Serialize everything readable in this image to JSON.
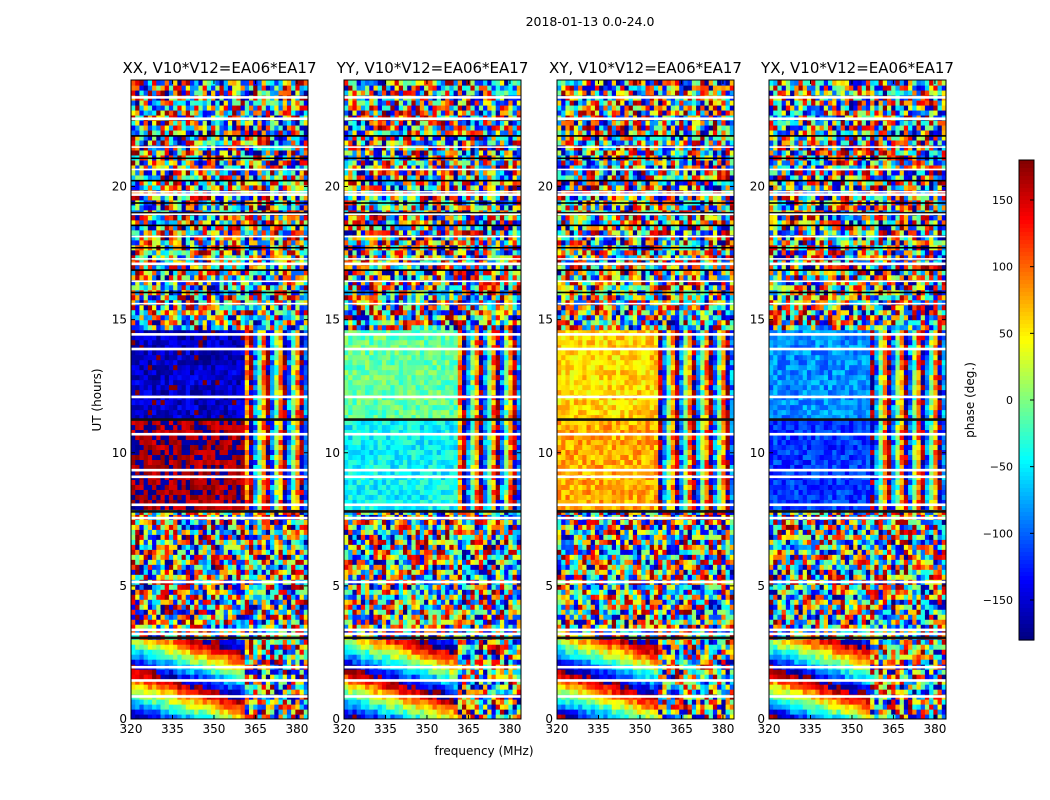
{
  "chart_data": {
    "type": "heatmap",
    "suptitle": "2018-01-13 0.0-24.0",
    "xlabel": "frequency (MHz)",
    "ylabel": "UT (hours)",
    "xlim": [
      320,
      384
    ],
    "ylim": [
      0,
      24
    ],
    "xticks": [
      320,
      335,
      350,
      365,
      380
    ],
    "yticks": [
      0,
      5,
      10,
      15,
      20
    ],
    "colorbar": {
      "label": "phase (deg.)",
      "range": [
        -180,
        180
      ],
      "ticks": [
        150,
        100,
        50,
        0,
        -50,
        -100,
        -150
      ],
      "tick_labels": [
        "150",
        "100",
        "50",
        "0",
        "−50",
        "−100",
        "−150"
      ],
      "colormap": "jet"
    },
    "panels": [
      {
        "title": "XX, V10*V12=EA06*EA17",
        "coherent_phase_early_deg": 170,
        "coherent_phase_late_deg": -155,
        "mid_day_coherent_block_hours": [
          7.9,
          14.6
        ],
        "band_edge_mhz": 361
      },
      {
        "title": "YY, V10*V12=EA06*EA17",
        "coherent_phase_early_deg": -45,
        "coherent_phase_late_deg": -10,
        "mid_day_coherent_block_hours": [
          7.9,
          14.6
        ],
        "band_edge_mhz": 361
      },
      {
        "title": "XY, V10*V12=EA06*EA17",
        "coherent_phase_early_deg": 75,
        "coherent_phase_late_deg": 60,
        "mid_day_coherent_block_hours": [
          7.9,
          14.6
        ],
        "band_edge_mhz": 356
      },
      {
        "title": "YX, V10*V12=EA06*EA17",
        "coherent_phase_early_deg": -115,
        "coherent_phase_late_deg": -85,
        "mid_day_coherent_block_hours": [
          7.9,
          14.6
        ],
        "band_edge_mhz": 356
      }
    ],
    "flagged_gaps_hours": [
      0.85,
      1.45,
      1.95,
      3.05,
      3.2,
      3.35,
      5.15,
      7.55,
      7.8,
      8.05,
      9.1,
      9.35,
      10.7,
      11.25,
      12.1,
      13.9,
      14.45,
      17.1,
      19.0,
      19.7,
      22.55,
      23.35
    ]
  }
}
